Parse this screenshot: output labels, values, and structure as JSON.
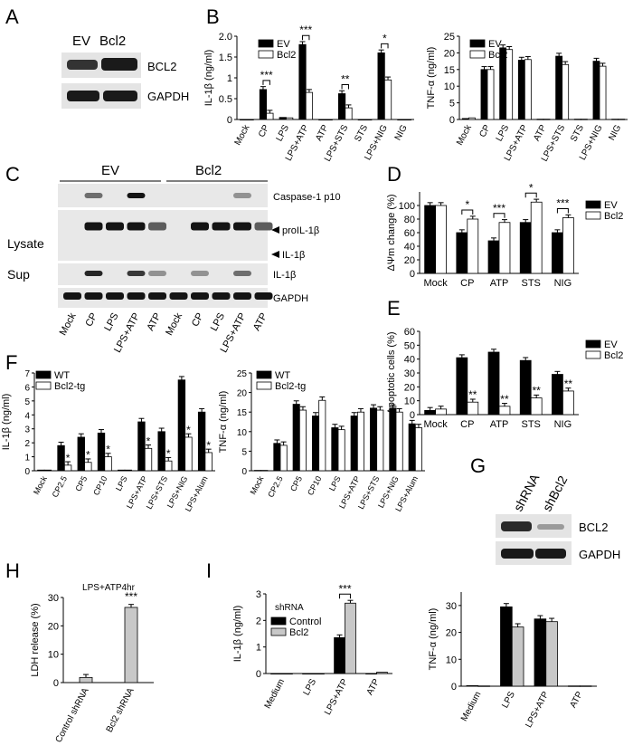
{
  "panels": {
    "A": {
      "letter": "A",
      "lanes": [
        "EV",
        "Bcl2"
      ],
      "bands": [
        "BCL2",
        "GAPDH"
      ]
    },
    "B_left": {
      "letter": "B",
      "chart_data": {
        "type": "bar",
        "ylabel": "IL-1β (ng/ml)",
        "ylim": [
          0,
          2.0
        ],
        "yticks": [
          "0",
          "0.5",
          "1",
          "1.5",
          "2.0"
        ],
        "categories": [
          "Mock",
          "CP",
          "LPS",
          "LPS+ATP",
          "ATP",
          "LPS+STS",
          "STS",
          "LPS+NIG",
          "NIG"
        ],
        "series": [
          {
            "name": "EV",
            "values": [
              0,
              0.72,
              0.05,
              1.8,
              0,
              0.62,
              0,
              1.6,
              0
            ]
          },
          {
            "name": "Bcl2",
            "values": [
              0,
              0.15,
              0.04,
              0.65,
              0,
              0.28,
              0,
              0.95,
              0
            ]
          }
        ],
        "annotations": [
          {
            "category": "CP",
            "label": "***"
          },
          {
            "category": "LPS+ATP",
            "label": "***"
          },
          {
            "category": "LPS+STS",
            "label": "**"
          },
          {
            "category": "LPS+NIG",
            "label": "*"
          }
        ],
        "legend": "top-left"
      }
    },
    "B_right": {
      "chart_data": {
        "type": "bar",
        "ylabel": "TNF-α (ng/ml)",
        "ylim": [
          0,
          25
        ],
        "yticks": [
          "0",
          "5",
          "10",
          "15",
          "20",
          "25"
        ],
        "categories": [
          "Mock",
          "CP",
          "LPS",
          "LPS+ATP",
          "ATP",
          "LPS+STS",
          "STS",
          "LPS+NIG",
          "NIG"
        ],
        "series": [
          {
            "name": "EV",
            "values": [
              0.3,
              15,
              21.5,
              17.8,
              0.1,
              19,
              0.1,
              17.5,
              0.1
            ]
          },
          {
            "name": "Bcl2",
            "values": [
              0.5,
              15,
              21,
              18,
              0.1,
              16.5,
              0.1,
              16,
              0.1
            ]
          }
        ],
        "legend": "top-left"
      }
    },
    "C": {
      "letter": "C",
      "groups": [
        "EV",
        "Bcl2"
      ],
      "row_labels": [
        "Lysate",
        "Sup"
      ],
      "band_labels": [
        "Caspase-1 p10",
        "proIL-1β",
        "IL-1β",
        "IL-1β",
        "GAPDH"
      ],
      "lanes": [
        "Mock",
        "CP",
        "LPS",
        "LPS+ATP",
        "ATP",
        "Mock",
        "CP",
        "LPS",
        "LPS+ATP",
        "ATP"
      ]
    },
    "D": {
      "letter": "D",
      "chart_data": {
        "type": "bar",
        "ylabel": "ΔΨm change (%)",
        "ylim": [
          0,
          120
        ],
        "yticks": [
          "0",
          "20",
          "40",
          "60",
          "80",
          "100"
        ],
        "categories": [
          "Mock",
          "CP",
          "ATP",
          "STS",
          "NIG"
        ],
        "series": [
          {
            "name": "EV",
            "values": [
              100,
              60,
              48,
              75,
              60
            ]
          },
          {
            "name": "Bcl2",
            "values": [
              100,
              80,
              75,
              105,
              82
            ]
          }
        ],
        "annotations": [
          {
            "category": "CP",
            "label": "*"
          },
          {
            "category": "ATP",
            "label": "***"
          },
          {
            "category": "STS",
            "label": "*"
          },
          {
            "category": "NIG",
            "label": "***"
          }
        ],
        "legend": "top-right"
      }
    },
    "E": {
      "letter": "E",
      "chart_data": {
        "type": "bar",
        "ylabel": "Apoptotic cells (%)",
        "ylim": [
          0,
          60
        ],
        "yticks": [
          "0",
          "10",
          "20",
          "30",
          "40",
          "50",
          "60"
        ],
        "categories": [
          "Mock",
          "CP",
          "ATP",
          "STS",
          "NIG"
        ],
        "series": [
          {
            "name": "EV",
            "values": [
              3,
              41,
              45,
              39,
              29
            ]
          },
          {
            "name": "Bcl2",
            "values": [
              4,
              9,
              6,
              12,
              17
            ]
          }
        ],
        "annotations": [
          {
            "category": "CP",
            "label": "**"
          },
          {
            "category": "ATP",
            "label": "**"
          },
          {
            "category": "STS",
            "label": "**"
          },
          {
            "category": "NIG",
            "label": "**"
          }
        ],
        "legend": "top-right"
      }
    },
    "F_left": {
      "letter": "F",
      "chart_data": {
        "type": "bar",
        "ylabel": "IL-1β (ng/ml)",
        "ylim": [
          0,
          7
        ],
        "yticks": [
          "0",
          "1",
          "2",
          "3",
          "4",
          "5",
          "6",
          "7"
        ],
        "categories": [
          "Mock",
          "CP2.5",
          "CP5",
          "CP10",
          "LPS",
          "LPS+ATP",
          "LPS+STS",
          "LPS+NIG",
          "LPS+Alum"
        ],
        "series": [
          {
            "name": "WT",
            "values": [
              0.05,
              1.8,
              2.4,
              2.7,
              0.05,
              3.5,
              2.8,
              6.5,
              4.2
            ]
          },
          {
            "name": "Bcl2-tg",
            "values": [
              0.05,
              0.4,
              0.6,
              1.0,
              0.05,
              1.6,
              0.7,
              2.4,
              1.3
            ]
          }
        ],
        "annotations": [
          {
            "category": "CP2.5",
            "label": "*"
          },
          {
            "category": "CP5",
            "label": "*"
          },
          {
            "category": "CP10",
            "label": "*"
          },
          {
            "category": "LPS+ATP",
            "label": "*"
          },
          {
            "category": "LPS+STS",
            "label": "*"
          },
          {
            "category": "LPS+NIG",
            "label": "*"
          },
          {
            "category": "LPS+Alum",
            "label": "*"
          }
        ],
        "legend": "top-left"
      }
    },
    "F_right": {
      "chart_data": {
        "type": "bar",
        "ylabel": "TNF-α (ng/ml)",
        "ylim": [
          0,
          25
        ],
        "yticks": [
          "0",
          "5",
          "10",
          "15",
          "20",
          "25"
        ],
        "categories": [
          "Mock",
          "CP2.5",
          "CP5",
          "CP10",
          "LPS",
          "LPS+ATP",
          "LPS+STS",
          "LPS+NIG",
          "LPS+Alum"
        ],
        "series": [
          {
            "name": "WT",
            "values": [
              0.1,
              7,
              17,
              14,
              11,
              14,
              16,
              16,
              12
            ]
          },
          {
            "name": "Bcl2-tg",
            "values": [
              0.1,
              6.5,
              15.5,
              18,
              10.5,
              15,
              15.5,
              15,
              11
            ]
          }
        ],
        "legend": "top-left"
      }
    },
    "G": {
      "letter": "G",
      "lanes": [
        "shRNA",
        "shBcl2"
      ],
      "bands": [
        "BCL2",
        "GAPDH"
      ]
    },
    "H": {
      "letter": "H",
      "chart_data": {
        "type": "bar",
        "title": "LPS+ATP4hr",
        "ylabel": "LDH release (%)",
        "ylim": [
          0,
          30
        ],
        "yticks": [
          "0",
          "10",
          "20",
          "30"
        ],
        "categories": [
          "Control shRNA",
          "Bcl2 shRNA"
        ],
        "series": [
          {
            "name": "",
            "values": [
              1.8,
              26.5
            ]
          }
        ],
        "annotations": [
          {
            "category": "Bcl2 shRNA",
            "label": "***"
          }
        ]
      }
    },
    "I_left": {
      "letter": "I",
      "chart_data": {
        "type": "bar",
        "ylabel": "IL-1β (ng/ml)",
        "ylim": [
          0,
          3
        ],
        "yticks": [
          "0",
          "1",
          "2",
          "3"
        ],
        "categories": [
          "Medium",
          "LPS",
          "LPS+ATP",
          "ATP"
        ],
        "legend_title": "shRNA",
        "series": [
          {
            "name": "Control",
            "values": [
              0,
              0,
              1.35,
              0
            ]
          },
          {
            "name": "Bcl2",
            "values": [
              0,
              0,
              2.65,
              0.05
            ]
          }
        ],
        "annotations": [
          {
            "category": "LPS+ATP",
            "label": "***"
          }
        ],
        "legend": "top-left"
      }
    },
    "I_right": {
      "chart_data": {
        "type": "bar",
        "ylabel": "TNF-α (ng/ml)",
        "ylim": [
          0,
          35
        ],
        "yticks": [
          "0",
          "10",
          "20",
          "30"
        ],
        "categories": [
          "Medium",
          "LPS",
          "LPS+ATP",
          "ATP"
        ],
        "series": [
          {
            "name": "Control",
            "values": [
              0.2,
              29.5,
              25,
              0.1
            ]
          },
          {
            "name": "Bcl2",
            "values": [
              0.1,
              22,
              24,
              0.1
            ]
          }
        ]
      }
    }
  },
  "colors": {
    "black_bar": "#000000",
    "white_bar": "#ffffff",
    "grey_bar": "#c8c8c8",
    "blot_bg": "#e4e4e4",
    "band": "#1a1a1a"
  }
}
